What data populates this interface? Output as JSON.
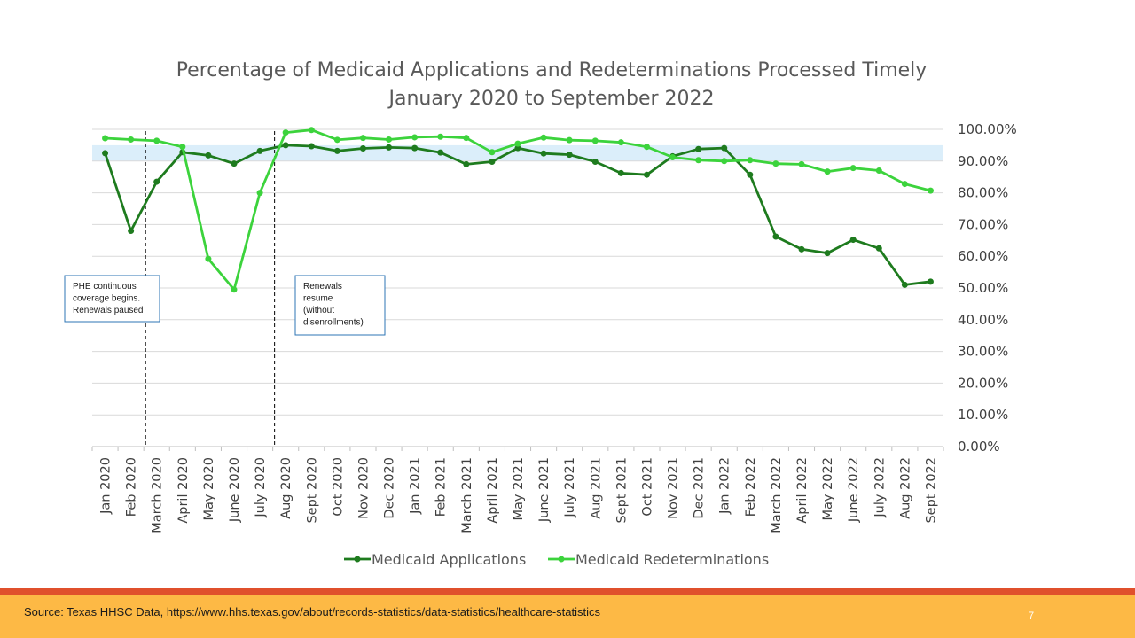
{
  "slide": {
    "source": "Source: Texas HHSC Data,  https://www.hhs.texas.gov/about/records-statistics/data-statistics/healthcare-statistics",
    "page_number": "7"
  },
  "colors": {
    "applications": "#1e7b1e",
    "redeterminations": "#3cd33c",
    "target_band": "#dbeefa",
    "annotation_border": "#2e75b6",
    "footer_orange": "#e0502c",
    "footer_yellow": "#fdb945"
  },
  "chart_data": {
    "type": "line",
    "title_lines": [
      "Percentage of Medicaid Applications and Redeterminations Processed Timely",
      "January 2020 to September 2022"
    ],
    "categories": [
      "Jan 2020",
      "Feb 2020",
      "March 2020",
      "April 2020",
      "May 2020",
      "June 2020",
      "July 2020",
      "Aug 2020",
      "Sept 2020",
      "Oct 2020",
      "Nov 2020",
      "Dec 2020",
      "Jan 2021",
      "Feb 2021",
      "March 2021",
      "April 2021",
      "May 2021",
      "June 2021",
      "July 2021",
      "Aug 2021",
      "Sept 2021",
      "Oct 2021",
      "Nov 2021",
      "Dec 2021",
      "Jan 2022",
      "Feb 2022",
      "March 2022",
      "April 2022",
      "May 2022",
      "June 2022",
      "July 2022",
      "Aug 2022",
      "Sept 2022"
    ],
    "y_tick_labels": [
      "0.00%",
      "10.00%",
      "20.00%",
      "30.00%",
      "40.00%",
      "50.00%",
      "60.00%",
      "70.00%",
      "80.00%",
      "90.00%",
      "100.00%"
    ],
    "ylim": [
      0,
      100
    ],
    "y_axis_position": "right",
    "grid": true,
    "legend_position": "bottom",
    "target_band": [
      90,
      95
    ],
    "series": [
      {
        "name": "Medicaid Applications",
        "color": "#1e7b1e",
        "values": [
          92.5,
          68.0,
          83.5,
          92.8,
          91.8,
          89.2,
          93.2,
          95.0,
          94.7,
          93.2,
          94.0,
          94.3,
          94.1,
          92.7,
          89.0,
          89.8,
          94.1,
          92.4,
          92.0,
          89.8,
          86.2,
          85.7,
          91.5,
          93.8,
          94.1,
          85.7,
          66.2,
          62.2,
          61.0,
          65.2,
          62.5,
          51.0,
          52.0
        ]
      },
      {
        "name": "Medicaid Redeterminations",
        "color": "#3cd33c",
        "values": [
          97.2,
          96.8,
          96.4,
          94.5,
          59.2,
          49.5,
          80.0,
          99.0,
          99.8,
          96.7,
          97.3,
          96.8,
          97.5,
          97.7,
          97.3,
          92.8,
          95.5,
          97.4,
          96.6,
          96.4,
          95.9,
          94.5,
          91.2,
          90.3,
          90.0,
          90.3,
          89.2,
          89.0,
          86.7,
          87.8,
          87.0,
          82.8,
          80.7
        ]
      }
    ],
    "annotations": [
      {
        "category": "March 2020",
        "lines": [
          "PHE continuous",
          "coverage begins.",
          "Renewals paused"
        ]
      },
      {
        "category": "Aug 2020",
        "lines": [
          "Renewals",
          "resume",
          "(without",
          "disenrollments)"
        ]
      }
    ]
  }
}
